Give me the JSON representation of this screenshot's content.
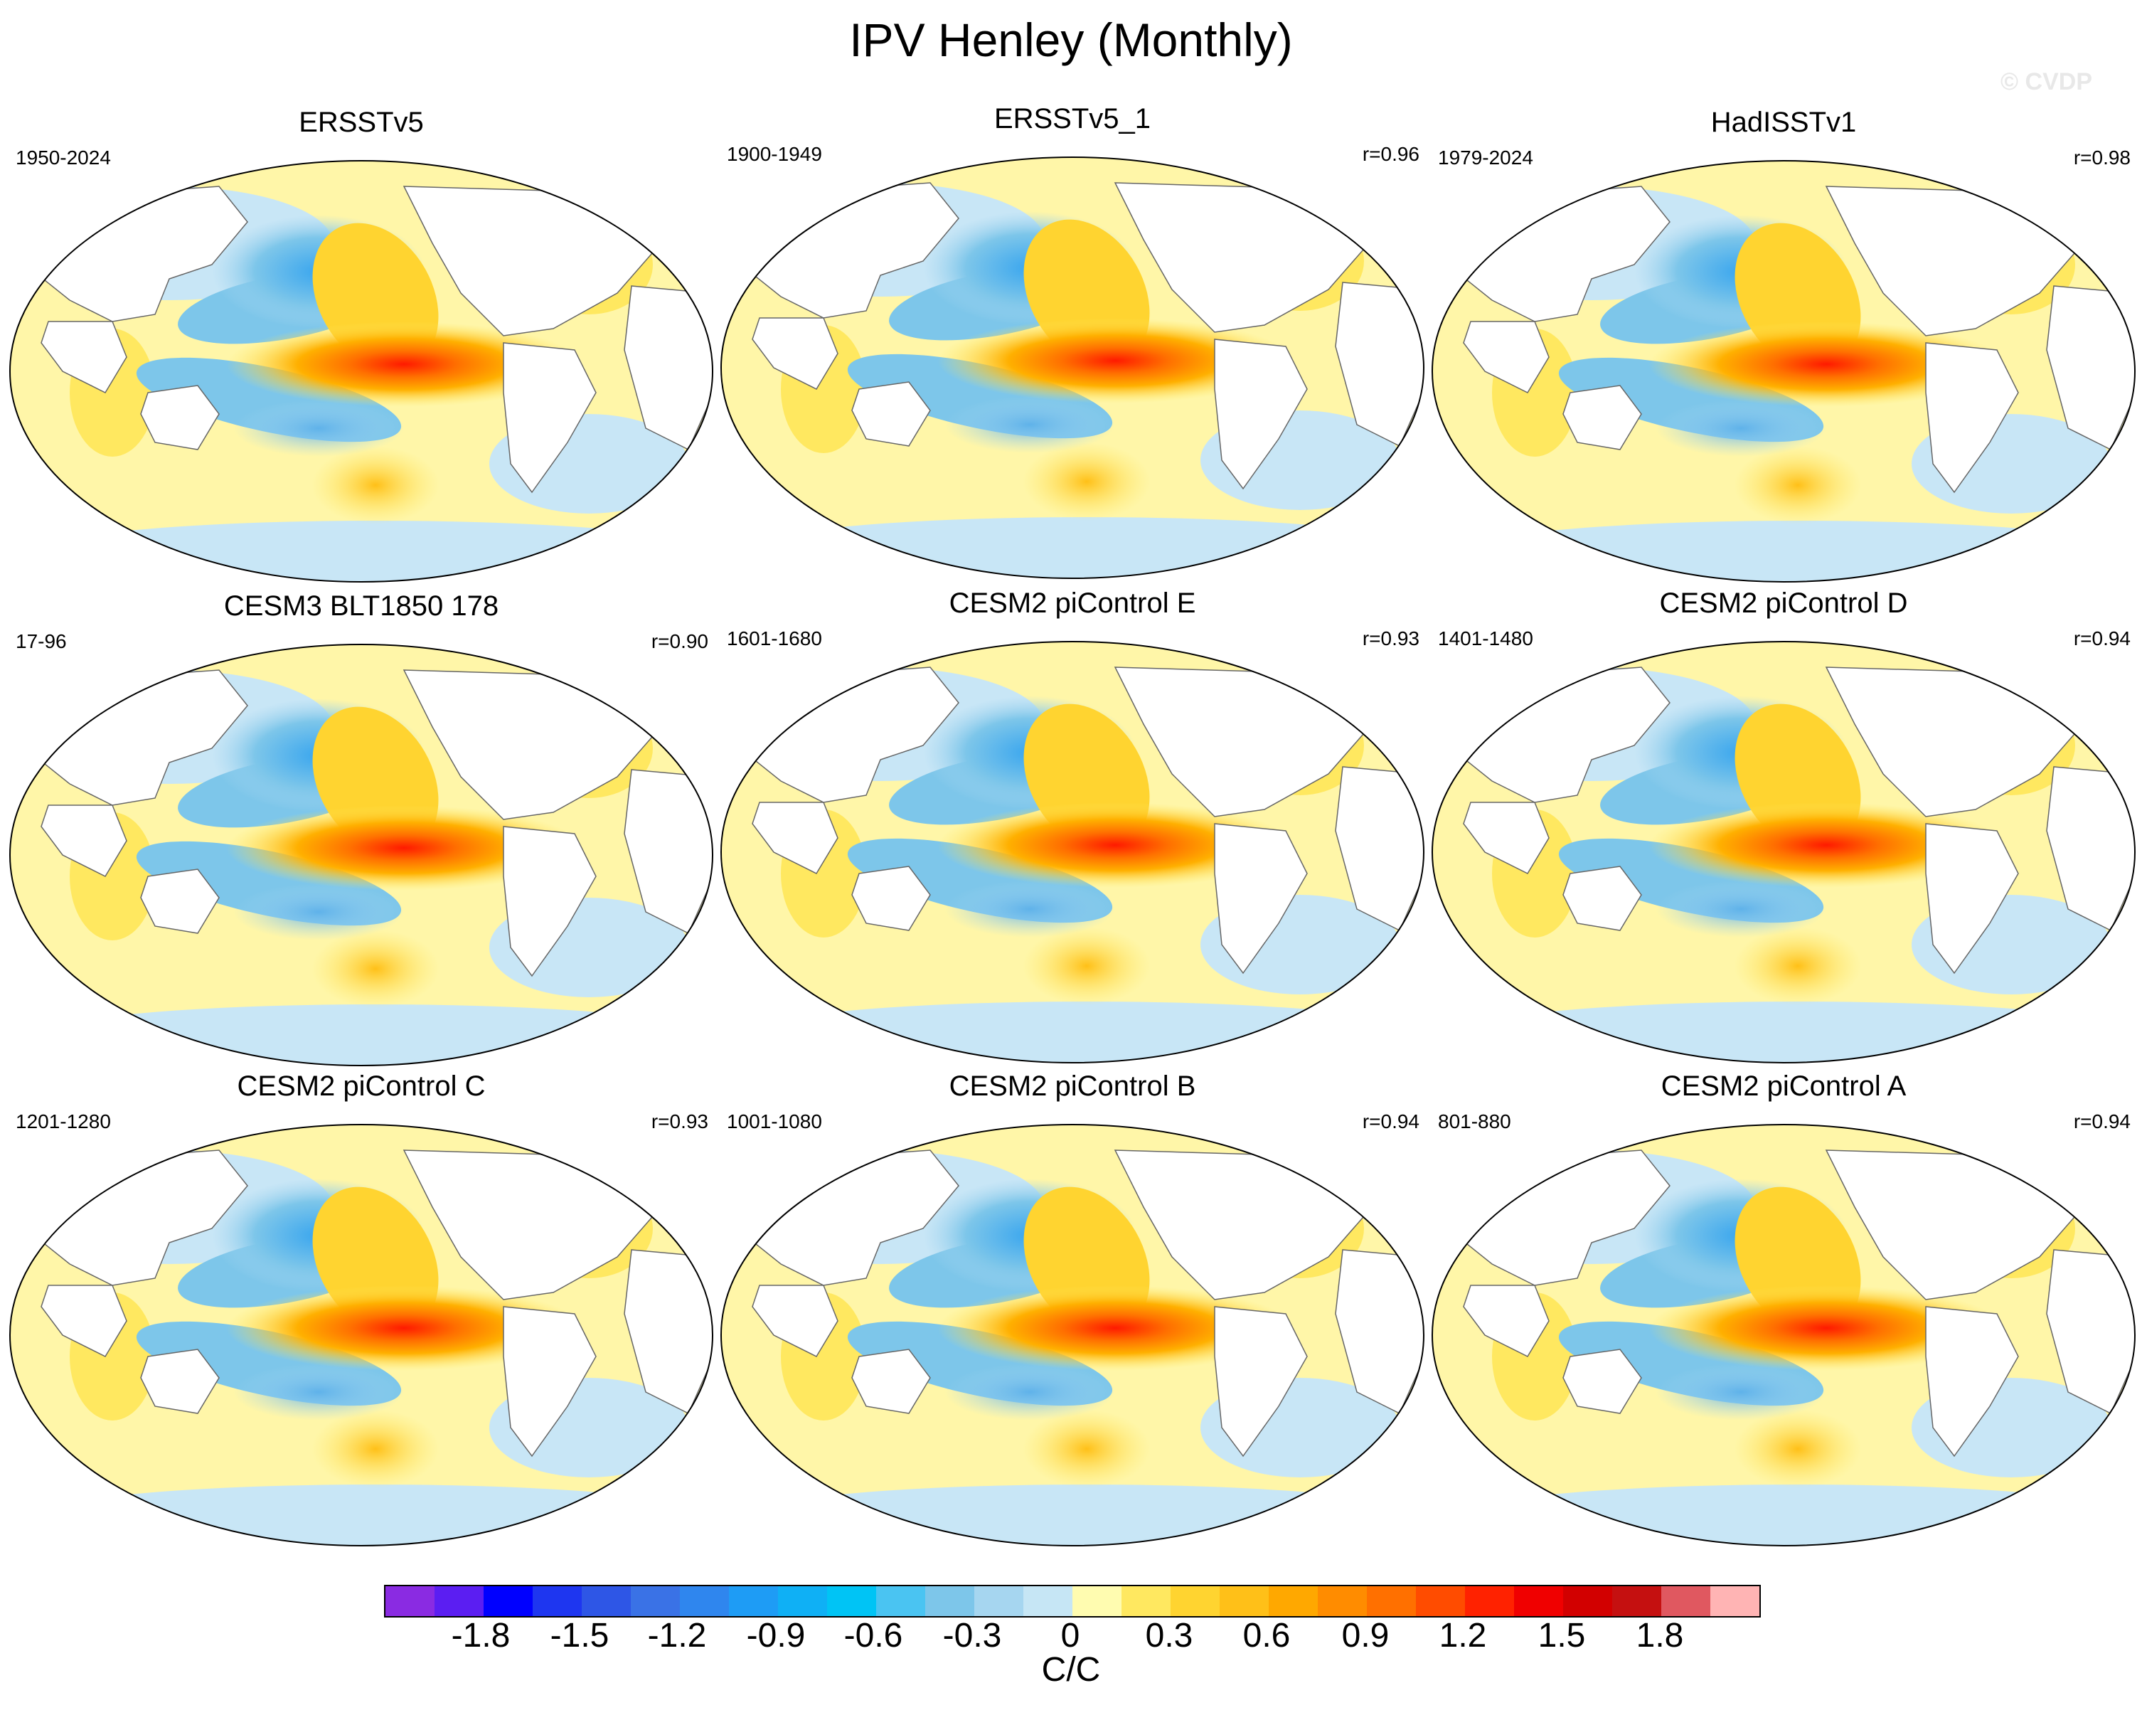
{
  "title": "IPV Henley (Monthly)",
  "watermark": "© CVDP",
  "panels": [
    {
      "title": "ERSSTv5",
      "period": "1950-2024",
      "r": ""
    },
    {
      "title": "ERSSTv5_1",
      "period": "1900-1949",
      "r": "r=0.96"
    },
    {
      "title": "HadISSTv1",
      "period": "1979-2024",
      "r": "r=0.98"
    },
    {
      "title": "CESM3 BLT1850 178",
      "period": "17-96",
      "r": "r=0.90"
    },
    {
      "title": "CESM2 piControl E",
      "period": "1601-1680",
      "r": "r=0.93"
    },
    {
      "title": "CESM2 piControl D",
      "period": "1401-1480",
      "r": "r=0.94"
    },
    {
      "title": "CESM2 piControl C",
      "period": "1201-1280",
      "r": "r=0.93"
    },
    {
      "title": "CESM2 piControl B",
      "period": "1001-1080",
      "r": "r=0.94"
    },
    {
      "title": "CESM2 piControl A",
      "period": "801-880",
      "r": "r=0.94"
    }
  ],
  "colorbar": {
    "units": "C/C",
    "colors": [
      "#8a2be2",
      "#5b1ef2",
      "#0000ff",
      "#1e36f0",
      "#2e56e6",
      "#3a72e6",
      "#2f86ee",
      "#1e9cf5",
      "#0fb0f5",
      "#00c4f5",
      "#4ac4f2",
      "#7dc6ea",
      "#a6d6f0",
      "#c6e6f5",
      "#fffcb0",
      "#ffe860",
      "#ffd430",
      "#ffc018",
      "#ffa800",
      "#ff8c00",
      "#ff7000",
      "#ff4c00",
      "#ff2200",
      "#f00000",
      "#d20000",
      "#c51010",
      "#e05860",
      "#ffb4b4"
    ],
    "tick_labels": [
      "-1.8",
      "-1.5",
      "-1.2",
      "-0.9",
      "-0.6",
      "-0.3",
      "0",
      "0.3",
      "0.6",
      "0.9",
      "1.2",
      "1.5",
      "1.8"
    ]
  },
  "colors": {
    "land": "#ffffff",
    "coast": "#666666",
    "neutral_warm": "#fff6a8",
    "neutral_cool": "#c8e6f6"
  }
}
